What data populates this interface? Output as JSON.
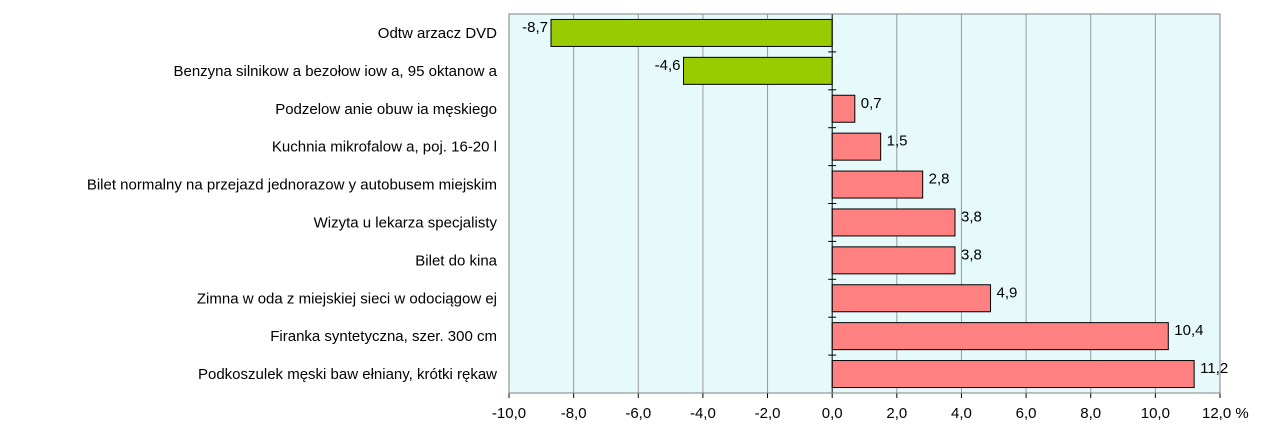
{
  "chart_data": {
    "type": "bar",
    "orientation": "horizontal",
    "categories": [
      "Odtw arzacz DVD",
      "Benzyna silnikow a bezołow iow a, 95 oktanow a",
      "Podzelow anie obuw ia męskiego",
      "Kuchnia mikrofalow a, poj. 16-20 l",
      "Bilet normalny na przejazd jednorazow y autobusem miejskim",
      "Wizyta u lekarza specjalisty",
      "Bilet do kina",
      "Zimna w oda z miejskiej sieci w odociągow ej",
      "Firanka syntetyczna, szer. 300 cm",
      "Podkoszulek męski baw ełniany, krótki rękaw"
    ],
    "values": [
      -8.7,
      -4.6,
      0.7,
      1.5,
      2.8,
      3.8,
      3.8,
      4.9,
      10.4,
      11.2
    ],
    "value_labels": [
      "-8,7",
      "-4,6",
      "0,7",
      "1,5",
      "2,8",
      "3,8",
      "3,8",
      "4,9",
      "10,4",
      "11,2"
    ],
    "xlim": [
      -10,
      12
    ],
    "xticks": [
      -10,
      -8,
      -6,
      -4,
      -2,
      0,
      2,
      4,
      6,
      8,
      10,
      12
    ],
    "xtick_labels": [
      "-10,0",
      "-8,0",
      "-6,0",
      "-4,0",
      "-2,0",
      "0,0",
      "2,0",
      "4,0",
      "6,0",
      "8,0",
      "10,0",
      "12,0 %"
    ],
    "grid": true,
    "colors": {
      "plot_background": "#e6fafc",
      "negative_bar": "#99cc00",
      "positive_bar": "#ff8080",
      "bar_border": "#000000",
      "grid": "#999999"
    }
  }
}
